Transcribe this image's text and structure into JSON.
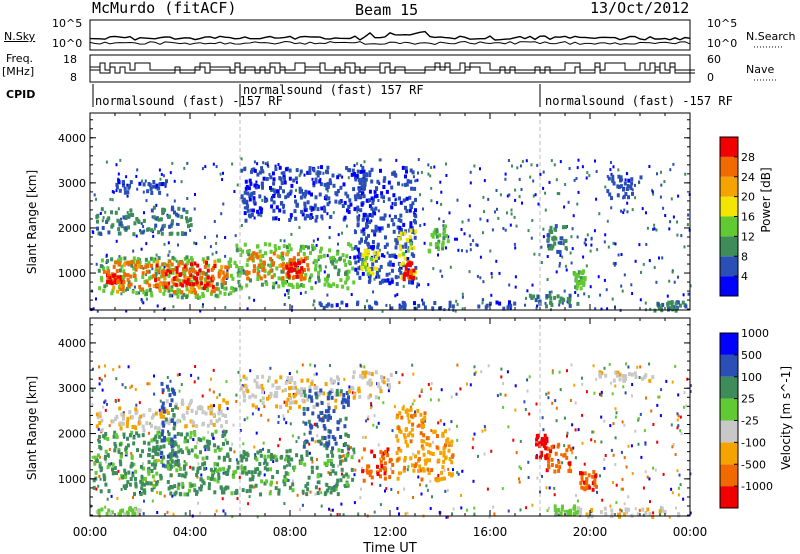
{
  "header": {
    "site": "McMurdo (fitACF)",
    "beam": "Beam 15",
    "date": "13/Oct/2012"
  },
  "strips": {
    "nsky_label": "N.Sky",
    "nsearch_label": "N.Search",
    "noise_tick_top": "10^5",
    "noise_tick_bottom": "10^0",
    "freq_label_1": "Freq.",
    "freq_label_2": "[MHz]",
    "freq_tick_top": "18",
    "freq_tick_bottom": "8",
    "nave_label": "Nave",
    "nave_tick_top": "60",
    "nave_tick_bottom": "0",
    "cpid_label": "CPID",
    "cpid_segments": [
      {
        "label": "normalsound (fast) -157 RF",
        "from": "00:00",
        "to": "06:00"
      },
      {
        "label": "normalsound (fast) 157 RF",
        "from": "06:00",
        "to": "18:00"
      },
      {
        "label": "normalsound (fast) -157 RF",
        "from": "18:00",
        "to": "24:00"
      }
    ]
  },
  "x_axis": {
    "label": "Time UT",
    "ticks": [
      "00:00",
      "04:00",
      "08:00",
      "12:00",
      "16:00",
      "20:00",
      "00:00"
    ]
  },
  "colors": {
    "power": [
      "#0000ff",
      "#2a4fb5",
      "#3d8c5a",
      "#61c932",
      "#f2e600",
      "#f5a300",
      "#f06a00",
      "#f00000"
    ],
    "velocity": [
      "#f00000",
      "#f06a00",
      "#f5a300",
      "#c8c8c8",
      "#61c932",
      "#3d8c5a",
      "#2a4fb5",
      "#0000ff"
    ]
  },
  "chart_data": [
    {
      "type": "heatmap",
      "panel": "power",
      "ylabel": "Slant Range [km]",
      "xlabel": "",
      "xlim_hours": [
        0,
        24
      ],
      "ylim": [
        180,
        4550
      ],
      "yticks": [
        1000,
        2000,
        3000,
        4000
      ],
      "colorbar": {
        "label": "Power [dB]",
        "range": [
          0,
          32
        ],
        "ticks": [
          4,
          8,
          12,
          16,
          20,
          24,
          28
        ]
      },
      "regions": [
        {
          "t0": 0.3,
          "t1": 5.8,
          "r0": 500,
          "r1": 1400,
          "level": 3
        },
        {
          "t0": 0.5,
          "t1": 5.5,
          "r0": 600,
          "r1": 1300,
          "level": 6
        },
        {
          "t0": 2.5,
          "t1": 5.0,
          "r0": 700,
          "r1": 1300,
          "level": 7
        },
        {
          "t0": 0.6,
          "t1": 1.3,
          "r0": 820,
          "r1": 1020,
          "level": 7
        },
        {
          "t0": 0.2,
          "t1": 4.0,
          "r0": 1900,
          "r1": 2500,
          "level": 2
        },
        {
          "t0": 1.0,
          "t1": 3.0,
          "r0": 2800,
          "r1": 3100,
          "level": 1
        },
        {
          "t0": 5.8,
          "t1": 10.5,
          "r0": 700,
          "r1": 1700,
          "level": 3
        },
        {
          "t0": 6.2,
          "t1": 8.8,
          "r0": 900,
          "r1": 1500,
          "level": 6
        },
        {
          "t0": 7.8,
          "t1": 8.5,
          "r0": 950,
          "r1": 1350,
          "level": 7
        },
        {
          "t0": 6.0,
          "t1": 11.0,
          "r0": 2200,
          "r1": 3400,
          "level": 1
        },
        {
          "t0": 10.5,
          "t1": 13.0,
          "r0": 800,
          "r1": 3400,
          "level": 1
        },
        {
          "t0": 10.8,
          "t1": 11.5,
          "r0": 1000,
          "r1": 1600,
          "level": 4
        },
        {
          "t0": 12.3,
          "t1": 13.0,
          "r0": 900,
          "r1": 2000,
          "level": 4
        },
        {
          "t0": 12.5,
          "t1": 12.9,
          "r0": 900,
          "r1": 1300,
          "level": 7
        },
        {
          "t0": 13.5,
          "t1": 14.3,
          "r0": 1500,
          "r1": 2100,
          "level": 3
        },
        {
          "t0": 9.0,
          "t1": 17.0,
          "r0": 250,
          "r1": 400,
          "level": 1
        },
        {
          "t0": 18.2,
          "t1": 19.0,
          "r0": 1500,
          "r1": 2100,
          "level": 2
        },
        {
          "t0": 19.3,
          "t1": 19.8,
          "r0": 700,
          "r1": 1100,
          "level": 3
        },
        {
          "t0": 17.5,
          "t1": 19.5,
          "r0": 300,
          "r1": 550,
          "level": 2
        },
        {
          "t0": 20.5,
          "t1": 22.0,
          "r0": 2700,
          "r1": 3200,
          "level": 1
        },
        {
          "t0": 22.5,
          "t1": 23.8,
          "r0": 200,
          "r1": 400,
          "level": 2
        }
      ]
    },
    {
      "type": "heatmap",
      "panel": "velocity",
      "ylabel": "Slant Range [km]",
      "xlabel": "Time UT",
      "xlim_hours": [
        0,
        24
      ],
      "ylim": [
        180,
        4550
      ],
      "yticks": [
        1000,
        2000,
        3000,
        4000
      ],
      "colorbar": {
        "label": "Velocity [m s^-1]",
        "ticks": [
          -1000,
          -500,
          -100,
          -25,
          25,
          100,
          500,
          1000
        ]
      },
      "regions": [
        {
          "t0": 0.1,
          "t1": 10.5,
          "r0": 700,
          "r1": 1700,
          "level": 5
        },
        {
          "t0": 0.3,
          "t1": 5.5,
          "r0": 1700,
          "r1": 2100,
          "level": 5
        },
        {
          "t0": 0.2,
          "t1": 3.2,
          "r0": 2100,
          "r1": 2600,
          "level": 3
        },
        {
          "t0": 3.0,
          "t1": 5.5,
          "r0": 2200,
          "r1": 2800,
          "level": 3
        },
        {
          "t0": 2.8,
          "t1": 3.4,
          "r0": 1300,
          "r1": 3200,
          "level": 6
        },
        {
          "t0": 6.0,
          "t1": 10.0,
          "r0": 2600,
          "r1": 3300,
          "level": 3
        },
        {
          "t0": 8.5,
          "t1": 10.3,
          "r0": 1700,
          "r1": 3000,
          "level": 6
        },
        {
          "t0": 10.3,
          "t1": 12.0,
          "r0": 2800,
          "r1": 3400,
          "level": 3
        },
        {
          "t0": 10.8,
          "t1": 12.2,
          "r0": 1000,
          "r1": 1700,
          "level": 1
        },
        {
          "t0": 12.2,
          "t1": 14.5,
          "r0": 1000,
          "r1": 2100,
          "level": 2
        },
        {
          "t0": 12.2,
          "t1": 13.5,
          "r0": 2100,
          "r1": 2600,
          "level": 2
        },
        {
          "t0": 17.8,
          "t1": 18.3,
          "r0": 1500,
          "r1": 2000,
          "level": 0
        },
        {
          "t0": 18.2,
          "t1": 19.2,
          "r0": 1200,
          "r1": 1800,
          "level": 1
        },
        {
          "t0": 19.5,
          "t1": 20.2,
          "r0": 800,
          "r1": 1200,
          "level": 1
        },
        {
          "t0": 20.3,
          "t1": 22.5,
          "r0": 3200,
          "r1": 3400,
          "level": 3
        },
        {
          "t0": 18.5,
          "t1": 19.5,
          "r0": 250,
          "r1": 450,
          "level": 4
        },
        {
          "t0": 0.2,
          "t1": 2.0,
          "r0": 250,
          "r1": 400,
          "level": 4
        },
        {
          "t0": 19.5,
          "t1": 23.5,
          "r0": 200,
          "r1": 400,
          "level": 3
        }
      ]
    }
  ]
}
